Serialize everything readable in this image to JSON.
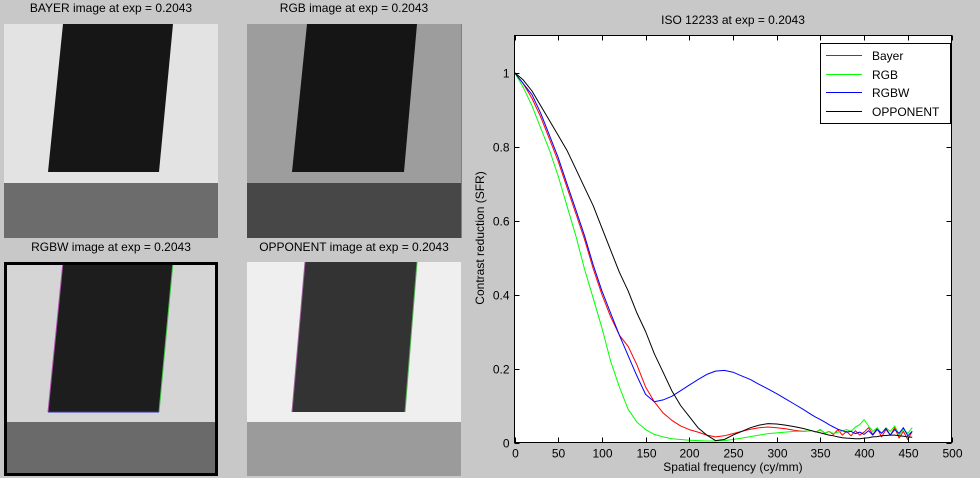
{
  "panels": [
    {
      "title": "BAYER image at exp = 0.2043"
    },
    {
      "title": "RGB image at exp = 0.2043"
    },
    {
      "title": "RGBW image at exp = 0.2043"
    },
    {
      "title": "OPPONENT image at exp = 0.2043"
    }
  ],
  "chart_data": {
    "type": "line",
    "title": "ISO 12233 at exp = 0.2043",
    "xlabel": "Spatial frequency (cy/mm)",
    "ylabel": "Contrast reduction (SFR)",
    "xlim": [
      0,
      500
    ],
    "ylim": [
      0,
      1.1
    ],
    "xticks": [
      0,
      50,
      100,
      150,
      200,
      250,
      300,
      350,
      400,
      450,
      500
    ],
    "yticks": [
      0,
      0.2,
      0.4,
      0.6,
      0.8,
      1
    ],
    "grid": false,
    "legend_position": "top-right",
    "x": [
      0,
      10,
      20,
      30,
      40,
      50,
      60,
      70,
      80,
      90,
      100,
      110,
      120,
      130,
      140,
      150,
      160,
      170,
      180,
      190,
      200,
      210,
      220,
      230,
      240,
      250,
      260,
      270,
      280,
      290,
      300,
      310,
      320,
      330,
      340,
      345,
      350,
      355,
      360,
      365,
      370,
      375,
      380,
      385,
      390,
      395,
      400,
      405,
      410,
      415,
      420,
      425,
      430,
      435,
      440,
      445,
      450,
      455
    ],
    "series": [
      {
        "name": "Bayer",
        "color": "#ff0000",
        "values": [
          1.0,
          0.97,
          0.93,
          0.88,
          0.82,
          0.76,
          0.69,
          0.62,
          0.55,
          0.47,
          0.4,
          0.34,
          0.29,
          0.26,
          0.21,
          0.15,
          0.11,
          0.08,
          0.06,
          0.045,
          0.035,
          0.028,
          0.02,
          0.015,
          0.018,
          0.024,
          0.03,
          0.036,
          0.04,
          0.042,
          0.04,
          0.037,
          0.033,
          0.03,
          0.032,
          0.028,
          0.035,
          0.025,
          0.03,
          0.022,
          0.035,
          0.02,
          0.03,
          0.018,
          0.032,
          0.02,
          0.028,
          0.04,
          0.022,
          0.038,
          0.015,
          0.035,
          0.02,
          0.04,
          0.012,
          0.03,
          0.008,
          0.03
        ]
      },
      {
        "name": "RGB",
        "color": "#00ff00",
        "values": [
          1.0,
          0.96,
          0.91,
          0.85,
          0.79,
          0.72,
          0.64,
          0.56,
          0.47,
          0.39,
          0.31,
          0.22,
          0.15,
          0.09,
          0.055,
          0.035,
          0.022,
          0.015,
          0.01,
          0.008,
          0.006,
          0.005,
          0.004,
          0.004,
          0.005,
          0.008,
          0.012,
          0.016,
          0.02,
          0.024,
          0.026,
          0.028,
          0.03,
          0.03,
          0.032,
          0.028,
          0.034,
          0.026,
          0.03,
          0.024,
          0.028,
          0.032,
          0.035,
          0.03,
          0.042,
          0.048,
          0.062,
          0.045,
          0.03,
          0.04,
          0.025,
          0.04,
          0.03,
          0.045,
          0.02,
          0.035,
          0.025,
          0.04
        ]
      },
      {
        "name": "RGBW",
        "color": "#0000ff",
        "values": [
          1.0,
          0.97,
          0.94,
          0.89,
          0.83,
          0.77,
          0.7,
          0.63,
          0.56,
          0.48,
          0.41,
          0.35,
          0.29,
          0.235,
          0.18,
          0.13,
          0.11,
          0.115,
          0.125,
          0.14,
          0.155,
          0.17,
          0.184,
          0.193,
          0.195,
          0.19,
          0.18,
          0.17,
          0.157,
          0.145,
          0.132,
          0.118,
          0.104,
          0.09,
          0.075,
          0.068,
          0.062,
          0.055,
          0.048,
          0.042,
          0.036,
          0.032,
          0.028,
          0.03,
          0.024,
          0.028,
          0.022,
          0.032,
          0.02,
          0.035,
          0.025,
          0.038,
          0.02,
          0.035,
          0.025,
          0.04,
          0.018,
          0.03
        ]
      },
      {
        "name": "OPPONENT",
        "color": "#000000",
        "values": [
          1.0,
          0.98,
          0.95,
          0.91,
          0.87,
          0.83,
          0.79,
          0.74,
          0.69,
          0.64,
          0.58,
          0.52,
          0.46,
          0.41,
          0.35,
          0.3,
          0.24,
          0.19,
          0.14,
          0.1,
          0.07,
          0.04,
          0.02,
          0.005,
          0.008,
          0.02,
          0.03,
          0.04,
          0.047,
          0.051,
          0.05,
          0.047,
          0.043,
          0.038,
          0.032,
          0.029,
          0.026,
          0.023,
          0.02,
          0.018,
          0.015,
          0.013,
          0.012,
          0.011,
          0.01,
          0.01,
          0.012,
          0.013,
          0.015,
          0.016,
          0.018,
          0.019,
          0.02,
          0.02,
          0.018,
          0.017,
          0.015,
          0.014
        ]
      }
    ]
  }
}
